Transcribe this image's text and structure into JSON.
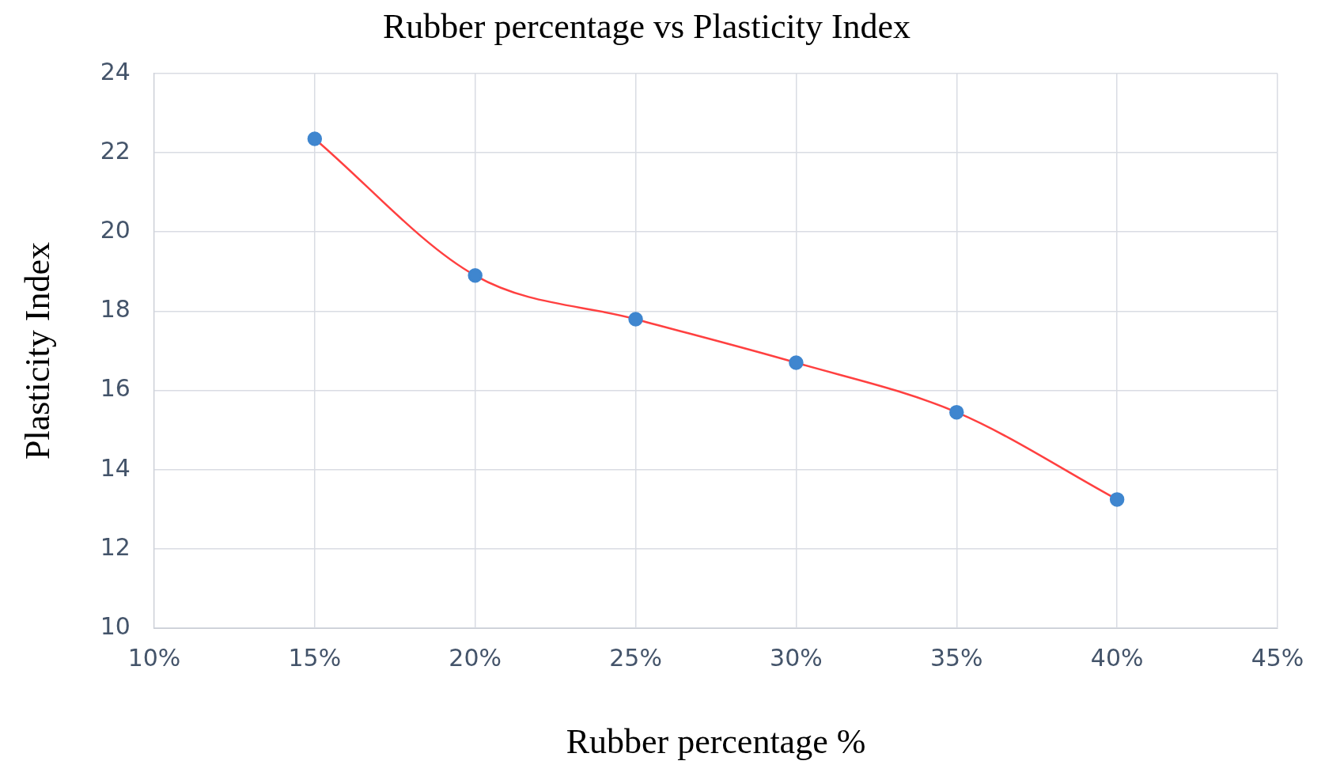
{
  "chart_data": {
    "type": "line",
    "title": "Rubber percentage vs Plasticity Index",
    "xlabel": "Rubber percentage %",
    "ylabel": "Plasticity Index",
    "x": [
      15,
      20,
      25,
      30,
      35,
      40
    ],
    "series": [
      {
        "color": "#ff4040",
        "values": [
          22.35,
          18.9,
          17.8,
          16.7,
          15.45,
          13.25
        ]
      }
    ],
    "marker": "circle",
    "line_style": "solid",
    "grid": true,
    "legend": false,
    "xlim": [
      10,
      45
    ],
    "xticks": [
      {
        "value": 10,
        "label": "10%"
      },
      {
        "value": 15,
        "label": "15%"
      },
      {
        "value": 20,
        "label": "20%"
      },
      {
        "value": 25,
        "label": "25%"
      },
      {
        "value": 30,
        "label": "30%"
      },
      {
        "value": 35,
        "label": "35%"
      },
      {
        "value": 40,
        "label": "40%"
      },
      {
        "value": 45,
        "label": "45%"
      }
    ],
    "ylim": [
      10,
      24
    ],
    "yticks": [
      10,
      12,
      14,
      16,
      18,
      20,
      22,
      24
    ]
  }
}
